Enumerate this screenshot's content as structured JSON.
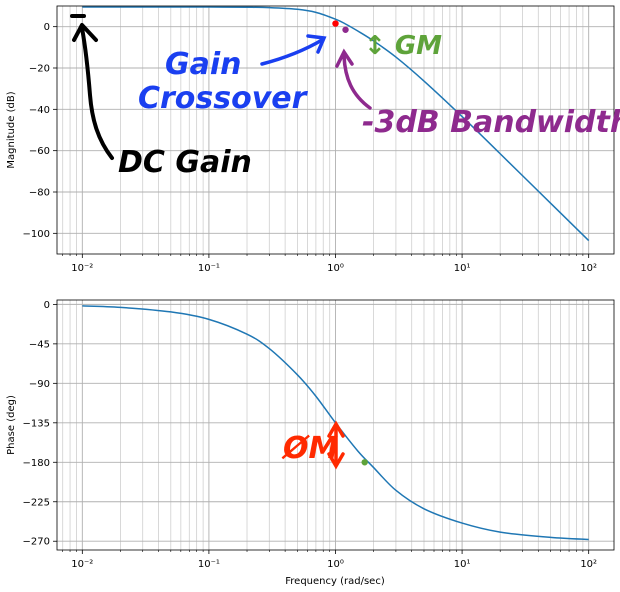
{
  "chart_data": [
    {
      "type": "line",
      "title": "",
      "xlabel": "",
      "ylabel": "Magnitude (dB)",
      "xscale": "log",
      "xlim": [
        0.01,
        100
      ],
      "ylim": [
        -110,
        10
      ],
      "yticks": [
        0,
        -20,
        -40,
        -60,
        -80,
        -100
      ],
      "ytick_labels": [
        "0",
        "−20",
        "−40",
        "−60",
        "−80",
        "−100"
      ],
      "xticks": [
        0.01,
        0.1,
        1,
        10,
        100
      ],
      "xtick_labels": [
        "10⁻²",
        "10⁻¹",
        "10⁰",
        "10¹",
        "10²"
      ],
      "grid": true,
      "line_color": "#1f77b4",
      "series": [
        {
          "x": [
            0.01,
            0.02,
            0.05,
            0.1,
            0.2,
            0.3,
            0.5,
            0.7,
            1.0,
            1.2,
            1.5,
            2,
            3,
            5,
            10,
            20,
            50,
            100
          ],
          "y": [
            9.5,
            9.5,
            9.5,
            9.5,
            9.4,
            9.2,
            8.4,
            6.9,
            3.6,
            1.3,
            -2.1,
            -6.9,
            -14.7,
            -26.3,
            -43.5,
            -61.5,
            -85.4,
            -103.5
          ]
        }
      ],
      "markers": [
        {
          "label": "gain-crossover",
          "x": 1.0,
          "y": 1.5,
          "color": "#ff0000"
        },
        {
          "label": "bandwidth",
          "x": 1.2,
          "y": -1.5,
          "color": "#8e2a8e"
        }
      ],
      "annotations": [
        {
          "text": "Gain\nCrossover",
          "color": "#1a3ff0"
        },
        {
          "text": "-3dB Bandwidth",
          "color": "#8e2a8e"
        },
        {
          "text": "↕ GM",
          "color": "#5ea33a"
        },
        {
          "text": "DC Gain",
          "color": "#000000"
        }
      ]
    },
    {
      "type": "line",
      "title": "",
      "xlabel": "Frequency (rad/sec)",
      "ylabel": "Phase (deg)",
      "xscale": "log",
      "xlim": [
        0.01,
        100
      ],
      "ylim": [
        -280,
        5
      ],
      "yticks": [
        0,
        -45,
        -90,
        -135,
        -180,
        -225,
        -270
      ],
      "ytick_labels": [
        "0",
        "−45",
        "−90",
        "−135",
        "−180",
        "−225",
        "−270"
      ],
      "xticks": [
        0.01,
        0.1,
        1,
        10,
        100
      ],
      "xtick_labels": [
        "10⁻²",
        "10⁻¹",
        "10⁰",
        "10¹",
        "10²"
      ],
      "grid": true,
      "line_color": "#1f77b4",
      "series": [
        {
          "x": [
            0.01,
            0.02,
            0.05,
            0.1,
            0.2,
            0.3,
            0.5,
            0.7,
            1.0,
            1.5,
            2,
            3,
            5,
            10,
            20,
            50,
            100
          ],
          "y": [
            -1.7,
            -3.4,
            -8.6,
            -17.1,
            -34.0,
            -50.4,
            -80.3,
            -104.7,
            -135.0,
            -167.1,
            -186.0,
            -212.0,
            -233.0,
            -249.3,
            -259.6,
            -265.6,
            -268.0
          ]
        }
      ],
      "markers": [
        {
          "label": "phase-crossover",
          "x": 1.7,
          "y": -180,
          "color": "#5ea33a"
        }
      ],
      "annotations": [
        {
          "text": "ØM",
          "color": "#ff2a00"
        }
      ]
    }
  ]
}
